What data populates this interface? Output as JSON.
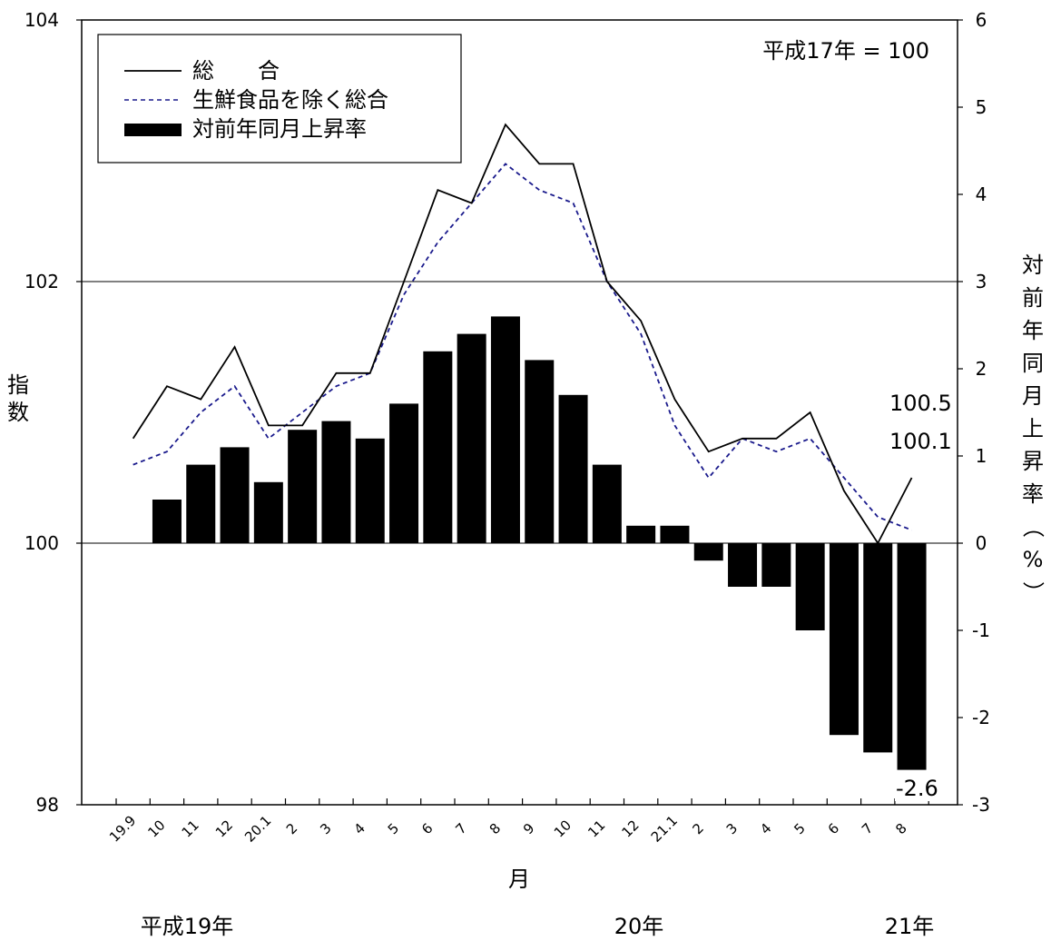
{
  "chart_data": {
    "type": "bar",
    "base_note": "平成17年 = 100",
    "left_axis": {
      "label": "指数",
      "range": [
        98,
        104
      ],
      "ticks": [
        "98",
        "100",
        "102",
        "104"
      ]
    },
    "right_axis": {
      "label": "対前年同月上昇率（%）",
      "range": [
        -3,
        6
      ],
      "ticks": [
        "-3",
        "-2",
        "-1",
        "0",
        "1",
        "2",
        "3",
        "4",
        "5",
        "6"
      ]
    },
    "x_label": "月",
    "categories": [
      "19.9",
      "10",
      "11",
      "12",
      "20.1",
      "2",
      "3",
      "4",
      "5",
      "6",
      "7",
      "8",
      "9",
      "10",
      "11",
      "12",
      "21.1",
      "2",
      "3",
      "4",
      "5",
      "6",
      "7",
      "8"
    ],
    "year_labels": [
      "平成19年",
      "20年",
      "21年"
    ],
    "gridlines": [
      100,
      102
    ],
    "series": [
      {
        "name": "総　　合",
        "type": "line",
        "style": "solid",
        "axis": "left",
        "values": [
          100.8,
          101.2,
          101.1,
          101.5,
          100.9,
          100.9,
          101.3,
          101.3,
          102.0,
          102.7,
          102.6,
          103.2,
          102.9,
          102.9,
          102.0,
          101.7,
          101.1,
          100.7,
          100.8,
          100.8,
          101.0,
          100.4,
          100.0,
          100.5
        ]
      },
      {
        "name": "生鮮食品を除く総合",
        "type": "line",
        "style": "dashed",
        "color": "#1a1a8c",
        "axis": "left",
        "values": [
          100.6,
          100.7,
          101.0,
          101.2,
          100.8,
          101.0,
          101.2,
          101.3,
          101.9,
          102.3,
          102.6,
          102.9,
          102.7,
          102.6,
          102.0,
          101.6,
          100.9,
          100.5,
          100.8,
          100.7,
          100.8,
          100.5,
          100.2,
          100.1
        ]
      },
      {
        "name": "対前年同月上昇率",
        "type": "bar",
        "axis": "right",
        "values": [
          null,
          0.5,
          0.9,
          1.1,
          0.7,
          1.3,
          1.4,
          1.2,
          1.6,
          2.2,
          2.4,
          2.6,
          2.1,
          1.7,
          0.9,
          0.2,
          0.2,
          -0.2,
          -0.5,
          -0.5,
          -1.0,
          -2.2,
          -2.4,
          -2.6
        ]
      }
    ],
    "annotations": [
      "100.5",
      "100.1",
      "-2.6"
    ],
    "legend": {
      "placement": "top-left"
    }
  }
}
